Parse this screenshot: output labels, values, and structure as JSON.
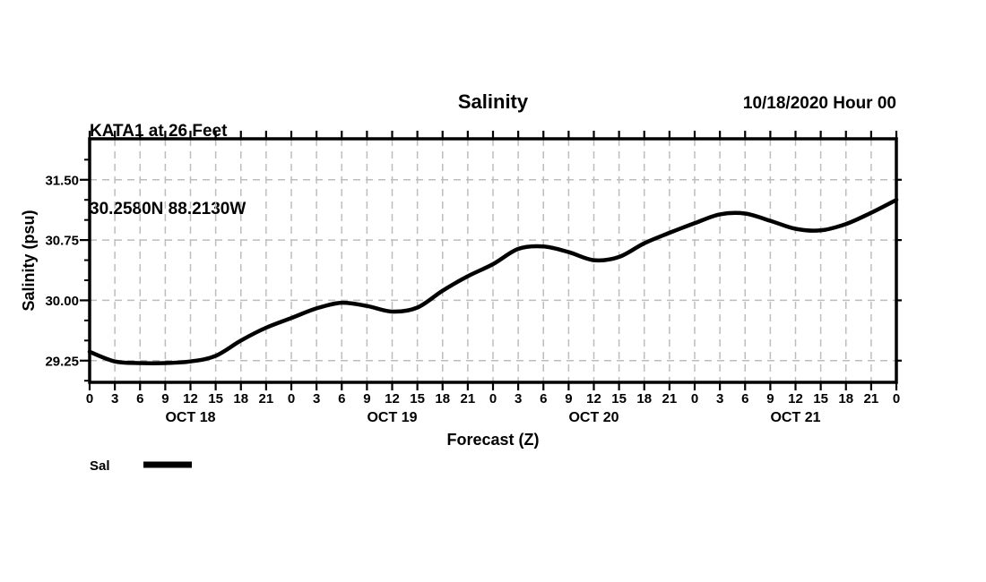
{
  "header": {
    "station_line": "KATA1 at 26 Feet",
    "coords_line": "30.2580N 88.2130W",
    "title": "Salinity",
    "run_line": "10/18/2020 Hour 00"
  },
  "legend": {
    "sal_label": "Sal"
  },
  "chart_data": {
    "type": "line",
    "title": "Salinity",
    "xlabel": "Forecast (Z)",
    "ylabel": "Salinity (psu)",
    "xlim": [
      0,
      96
    ],
    "ylim": [
      28.98,
      32.01
    ],
    "x_hours": [
      0,
      3,
      6,
      9,
      12,
      15,
      18,
      21,
      24,
      27,
      30,
      33,
      36,
      39,
      42,
      45,
      48,
      51,
      54,
      57,
      60,
      63,
      66,
      69,
      72,
      75,
      78,
      81,
      84,
      87,
      90,
      93,
      96
    ],
    "x_tick_labels": [
      "0",
      "3",
      "6",
      "9",
      "12",
      "15",
      "18",
      "21",
      "0",
      "3",
      "6",
      "9",
      "12",
      "15",
      "18",
      "21",
      "0",
      "3",
      "6",
      "9",
      "12",
      "15",
      "18",
      "21",
      "0",
      "3",
      "6",
      "9",
      "12",
      "15",
      "18",
      "21",
      "0"
    ],
    "day_labels": [
      {
        "label": "OCT 18",
        "hour": 12
      },
      {
        "label": "OCT 19",
        "hour": 36
      },
      {
        "label": "OCT 20",
        "hour": 60
      },
      {
        "label": "OCT 21",
        "hour": 84
      }
    ],
    "y_major_ticks": [
      29.25,
      30.0,
      30.75,
      31.5
    ],
    "y_major_tick_labels": [
      "29.25",
      "30.00",
      "30.75",
      "31.50"
    ],
    "y_minor_ticks": [
      29.0,
      29.5,
      29.75,
      30.25,
      30.5,
      31.0,
      31.25,
      31.75
    ],
    "grid": true,
    "grid_style": "dashed",
    "grid_color": "#bdbdbd",
    "line_color": "#000000",
    "frame_color": "#000000",
    "legend_position": "bottom-left",
    "series": [
      {
        "name": "Sal",
        "values": [
          29.36,
          29.24,
          29.22,
          29.22,
          29.24,
          29.31,
          29.5,
          29.66,
          29.78,
          29.9,
          29.97,
          29.93,
          29.86,
          29.91,
          30.12,
          30.3,
          30.45,
          30.64,
          30.67,
          30.6,
          30.5,
          30.54,
          30.71,
          30.84,
          30.96,
          31.07,
          31.08,
          30.99,
          30.89,
          30.87,
          30.95,
          31.09,
          31.25
        ]
      }
    ]
  }
}
